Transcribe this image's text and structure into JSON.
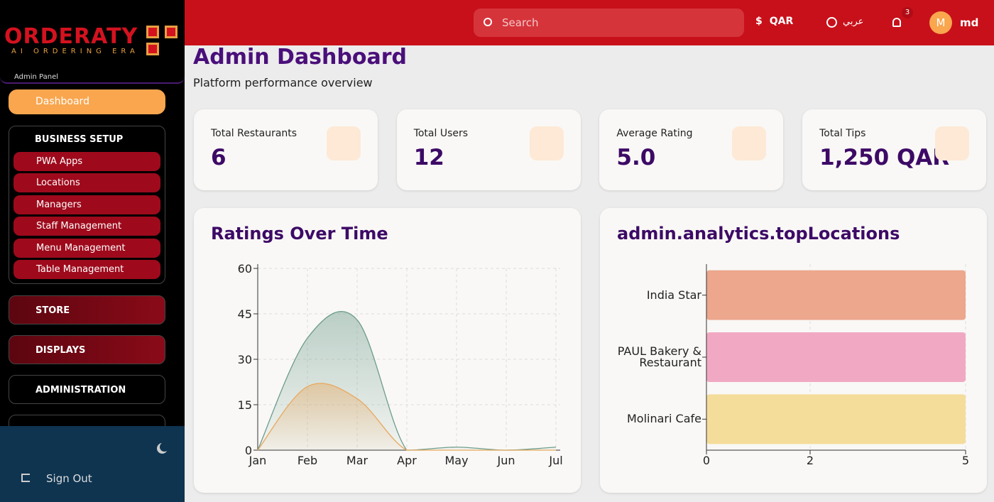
{
  "sidebar": {
    "logo": "ORDERATY",
    "tagline": "AI ORDERING ERA",
    "panel": "Admin Panel",
    "dashboard": "Dashboard",
    "business_setup": {
      "title": "BUSINESS SETUP",
      "items": [
        "PWA Apps",
        "Locations",
        "Managers",
        "Staff Management",
        "Menu Management",
        "Table Management"
      ]
    },
    "groups": [
      "STORE",
      "DISPLAYS",
      "ADMINISTRATION"
    ],
    "sign_out": "Sign Out"
  },
  "header": {
    "search": "Search",
    "currency": "QAR",
    "language": "عربي",
    "notifications": 3,
    "avatar": "M",
    "user": "md"
  },
  "title": "Admin Dashboard",
  "subtitle": "Platform performance overview",
  "stats": [
    {
      "label": "Total Restaurants",
      "value": "6"
    },
    {
      "label": "Total Users",
      "value": "12"
    },
    {
      "label": "Average Rating",
      "value": "5.0"
    },
    {
      "label": "Total Tips",
      "value": "1,250 QAR"
    }
  ],
  "chart_data": [
    {
      "type": "area",
      "title": "Ratings Over Time",
      "categories": [
        "Jan",
        "Feb",
        "Mar",
        "Apr",
        "May",
        "Jun",
        "Jul"
      ],
      "series": [
        {
          "color": "#6e9c8c",
          "values": [
            0,
            37,
            43,
            0,
            1,
            0,
            1
          ]
        },
        {
          "color": "#e8a85e",
          "values": [
            0,
            21,
            17,
            0,
            0,
            0,
            0
          ]
        }
      ],
      "ylim": [
        0,
        60
      ],
      "yticks": [
        0,
        15,
        30,
        45,
        60
      ],
      "grid": true
    },
    {
      "type": "barh",
      "title": "admin.analytics.topLocations",
      "categories": [
        "India Star",
        "PAUL Bakery & Restaurant",
        "Molinari Cafe"
      ],
      "values": [
        5,
        5,
        5
      ],
      "colors": [
        "#eca78c",
        "#f1a9c3",
        "#f4dd9a"
      ],
      "xlim": [
        0,
        5
      ],
      "xticks": [
        0,
        2,
        5
      ],
      "grid": true
    }
  ]
}
